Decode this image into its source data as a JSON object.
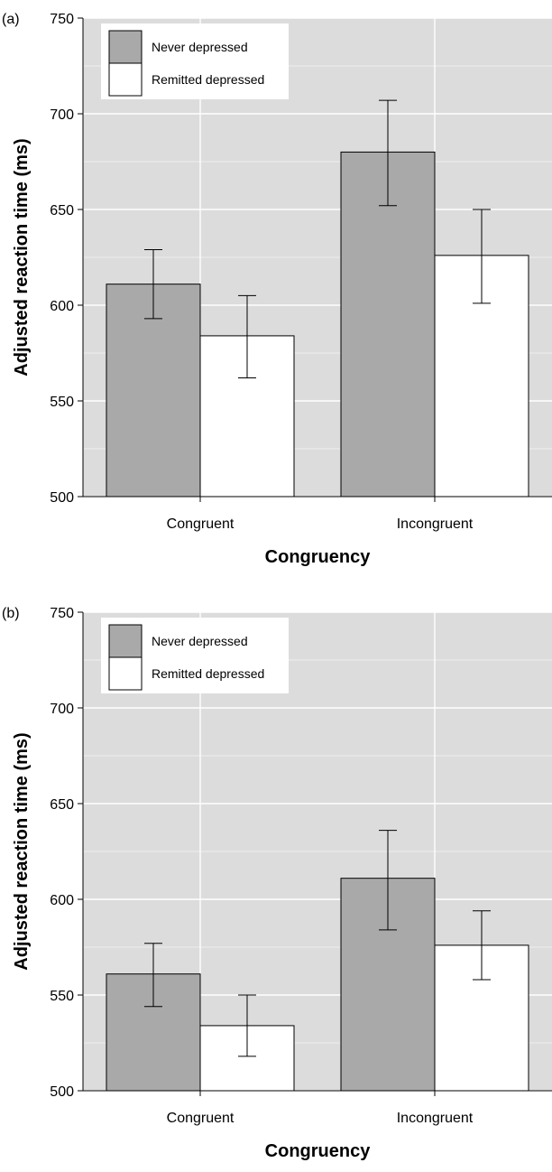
{
  "chart_data": [
    {
      "type": "bar",
      "panel_label": "(a)",
      "categories": [
        "Congruent",
        "Incongruent"
      ],
      "series": [
        {
          "name": "Never depressed",
          "values": [
            611,
            680
          ],
          "error_low": [
            593,
            652
          ],
          "error_high": [
            629,
            707
          ],
          "color": "#a9a9a9"
        },
        {
          "name": "Remitted depressed",
          "values": [
            584,
            626
          ],
          "error_low": [
            562,
            601
          ],
          "error_high": [
            605,
            650
          ],
          "color": "#ffffff"
        }
      ],
      "xlabel": "Congruency",
      "ylabel": "Adjusted reaction time (ms)",
      "ylim": [
        500,
        750
      ],
      "yticks": [
        "500",
        "550",
        "600",
        "650",
        "700",
        "750"
      ],
      "grid": true,
      "legend_position": "top-left"
    },
    {
      "type": "bar",
      "panel_label": "(b)",
      "categories": [
        "Congruent",
        "Incongruent"
      ],
      "series": [
        {
          "name": "Never depressed",
          "values": [
            561,
            611
          ],
          "error_low": [
            544,
            584
          ],
          "error_high": [
            577,
            636
          ],
          "color": "#a9a9a9"
        },
        {
          "name": "Remitted depressed",
          "values": [
            534,
            576
          ],
          "error_low": [
            518,
            558
          ],
          "error_high": [
            550,
            594
          ],
          "color": "#ffffff"
        }
      ],
      "xlabel": "Congruency",
      "ylabel": "Adjusted reaction time (ms)",
      "ylim": [
        500,
        750
      ],
      "yticks": [
        "500",
        "550",
        "600",
        "650",
        "700",
        "750"
      ],
      "grid": true,
      "legend_position": "top-left"
    }
  ]
}
